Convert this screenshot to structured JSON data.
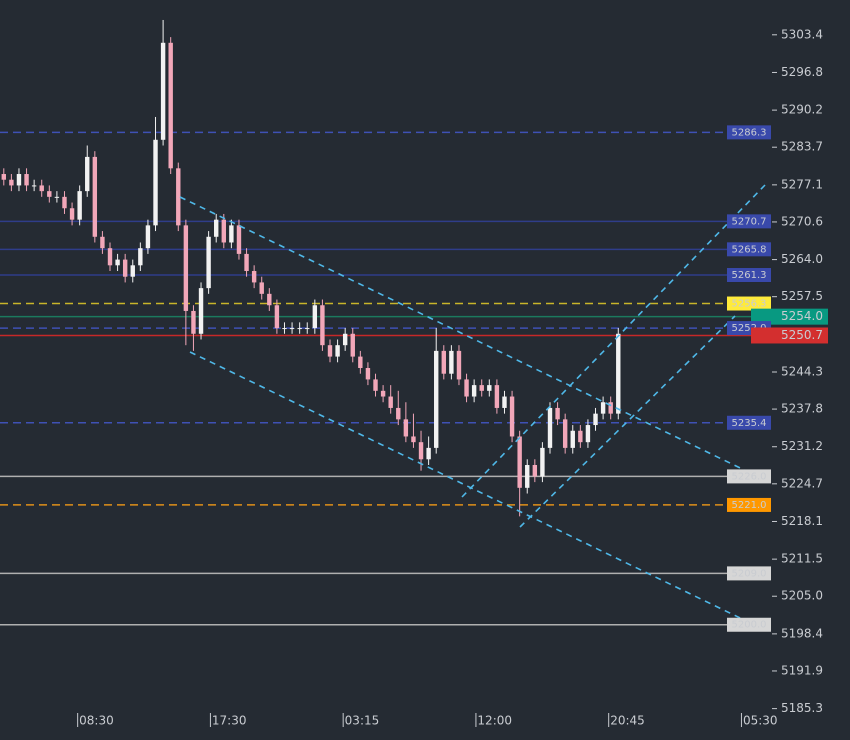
{
  "chart_data": {
    "type": "candlestick",
    "up_color": "#f2f2f2",
    "down_color": "#f2a7b9",
    "open": [
      5279,
      5278,
      5277,
      5279,
      5277,
      5277,
      5276,
      5275,
      5275,
      5273,
      5271,
      5276,
      5282,
      5268,
      5266,
      5263,
      5264,
      5261,
      5263,
      5266,
      5270,
      5285,
      5302,
      5280,
      5270,
      5255,
      5251,
      5259,
      5268,
      5271,
      5267,
      5270,
      5265,
      5262,
      5260,
      5258,
      5256,
      5252,
      5252,
      5252,
      5252,
      5252,
      5256,
      5249,
      5247,
      5249,
      5251,
      5247,
      5245,
      5243,
      5241,
      5240,
      5238,
      5236,
      5233,
      5232,
      5229,
      5231,
      5248,
      5244,
      5248,
      5243,
      5240,
      5242,
      5241,
      5242,
      5238,
      5240,
      5233,
      5224,
      5228,
      5226,
      5231,
      5238,
      5236,
      5231,
      5234,
      5232,
      5235,
      5237,
      5239,
      5237
    ],
    "high": [
      5280,
      5279,
      5280,
      5280,
      5278,
      5278,
      5277,
      5276,
      5276,
      5274,
      5277,
      5284,
      5283,
      5269,
      5267,
      5265,
      5265,
      5264,
      5267,
      5271,
      5289,
      5306,
      5303,
      5281,
      5271,
      5256,
      5260,
      5269,
      5272,
      5272,
      5271,
      5271,
      5266,
      5263,
      5261,
      5259,
      5257,
      5253,
      5253,
      5253,
      5253,
      5257,
      5257,
      5250,
      5250,
      5252,
      5252,
      5248,
      5246,
      5244,
      5242,
      5242,
      5241,
      5239,
      5237,
      5234,
      5233,
      5252,
      5249,
      5249,
      5249,
      5244,
      5243,
      5243,
      5243,
      5243,
      5241,
      5241,
      5234,
      5229,
      5229,
      5232,
      5239,
      5239,
      5237,
      5235,
      5235,
      5236,
      5238,
      5240,
      5240,
      5252
    ],
    "low": [
      5277,
      5276,
      5276,
      5276,
      5276,
      5275,
      5274,
      5274,
      5272,
      5270,
      5270,
      5275,
      5267,
      5265,
      5262,
      5262,
      5260,
      5260,
      5262,
      5265,
      5269,
      5284,
      5279,
      5269,
      5249,
      5248,
      5250,
      5258,
      5267,
      5266,
      5266,
      5264,
      5261,
      5259,
      5257,
      5255,
      5251,
      5251,
      5251,
      5251,
      5251,
      5251,
      5248,
      5246,
      5246,
      5248,
      5246,
      5244,
      5242,
      5240,
      5239,
      5237,
      5235,
      5232,
      5231,
      5227,
      5228,
      5230,
      5243,
      5243,
      5242,
      5239,
      5239,
      5240,
      5240,
      5237,
      5237,
      5232,
      5219,
      5223,
      5225,
      5225,
      5230,
      5235,
      5230,
      5230,
      5231,
      5231,
      5234,
      5236,
      5236,
      5236
    ],
    "close": [
      5278,
      5277,
      5279,
      5277,
      5277,
      5276,
      5275,
      5275,
      5273,
      5271,
      5276,
      5282,
      5268,
      5266,
      5263,
      5264,
      5261,
      5263,
      5266,
      5270,
      5285,
      5302,
      5280,
      5270,
      5255,
      5251,
      5259,
      5268,
      5271,
      5267,
      5270,
      5265,
      5262,
      5260,
      5258,
      5256,
      5252,
      5252,
      5252,
      5252,
      5252,
      5256,
      5249,
      5247,
      5249,
      5251,
      5247,
      5245,
      5243,
      5241,
      5240,
      5238,
      5236,
      5233,
      5232,
      5229,
      5231,
      5248,
      5244,
      5248,
      5243,
      5240,
      5242,
      5241,
      5242,
      5238,
      5240,
      5233,
      5224,
      5228,
      5226,
      5231,
      5238,
      5236,
      5231,
      5234,
      5232,
      5235,
      5237,
      5239,
      5237,
      5251
    ],
    "xlim": [
      -0.5,
      101
    ],
    "xticks": [
      {
        "value": 10,
        "label": "08:30"
      },
      {
        "value": 27.5,
        "label": "17:30"
      },
      {
        "value": 45,
        "label": "03:15"
      },
      {
        "value": 62.5,
        "label": "12:00"
      },
      {
        "value": 80,
        "label": "20:45"
      },
      {
        "value": 97.5,
        "label": "05:30"
      }
    ],
    "ylim": [
      5179.8,
      5309.5
    ],
    "yticks": [
      5303.4,
      5296.8,
      5290.2,
      5283.7,
      5277.1,
      5270.6,
      {
        "value": 5264.0,
        "label": "5264.0"
      },
      5257.5,
      5244.3,
      5237.8,
      5231.2,
      5224.7,
      5218.1,
      5211.5,
      {
        "value": 5205.0,
        "label": "5205.0"
      },
      5198.4,
      5191.9,
      5185.3
    ],
    "levels": [
      {
        "value": 5286.3,
        "label": "5286.3",
        "color": "#3f51b5",
        "style": "dashed",
        "box": "#3949ab",
        "text_color": "#b8c0ee"
      },
      {
        "value": 5270.7,
        "label": "5270.7",
        "color": "#2f3d8a",
        "style": "solid",
        "box": "#3949ab",
        "text_color": "#b8c0ee"
      },
      {
        "value": 5265.8,
        "label": "5265.8",
        "color": "#2f3d8a",
        "style": "solid",
        "box": "#3949ab",
        "text_color": "#b8c0ee"
      },
      {
        "value": 5261.3,
        "label": "5261.3",
        "color": "#2f3d8a",
        "style": "solid",
        "box": "#3949ab",
        "text_color": "#b8c0ee"
      },
      {
        "value": 5256.3,
        "label": "5256.3",
        "color": "#c9b52a",
        "style": "dashed",
        "box": "#ffeb3b",
        "text_color": "#222222"
      },
      {
        "value": 5254.0,
        "label": "5254.0",
        "color": "#1b7a5e",
        "style": "solid",
        "box": "#089981",
        "text_color": "#ffffff",
        "on_axis": true
      },
      {
        "value": 5252.0,
        "label": "5252.0",
        "color": "#3f51b5",
        "style": "dashed",
        "box": "#3949ab",
        "text_color": "#b8c0ee"
      },
      {
        "value": 5250.7,
        "label": "5250.7",
        "color": "#c62828",
        "style": "solid",
        "box": "#d32f2f",
        "text_color": "#ffffff",
        "on_axis": true
      },
      {
        "value": 5235.4,
        "label": "5235.4",
        "color": "#3f51b5",
        "style": "dashed",
        "box": "#3949ab",
        "text_color": "#b8c0ee"
      },
      {
        "value": 5226.0,
        "label": "5226.0",
        "color": "#b0b0b0",
        "style": "solid",
        "box": "#d6d6d6",
        "text_color": "#9a9a9a"
      },
      {
        "value": 5221.0,
        "label": "5221.0",
        "color": "#e0901a",
        "style": "dashed",
        "box": "#ff9800",
        "text_color": "#222222"
      },
      {
        "value": 5209.0,
        "label": "5209.0",
        "color": "#b0b0b0",
        "style": "solid",
        "box": "#d6d6d6",
        "text_color": "#9a9a9a"
      },
      {
        "value": 5200.0,
        "label": "5200.0",
        "color": "#b0b0b0",
        "style": "solid",
        "box": "#d6d6d6",
        "text_color": "#9a9a9a"
      }
    ]
  }
}
